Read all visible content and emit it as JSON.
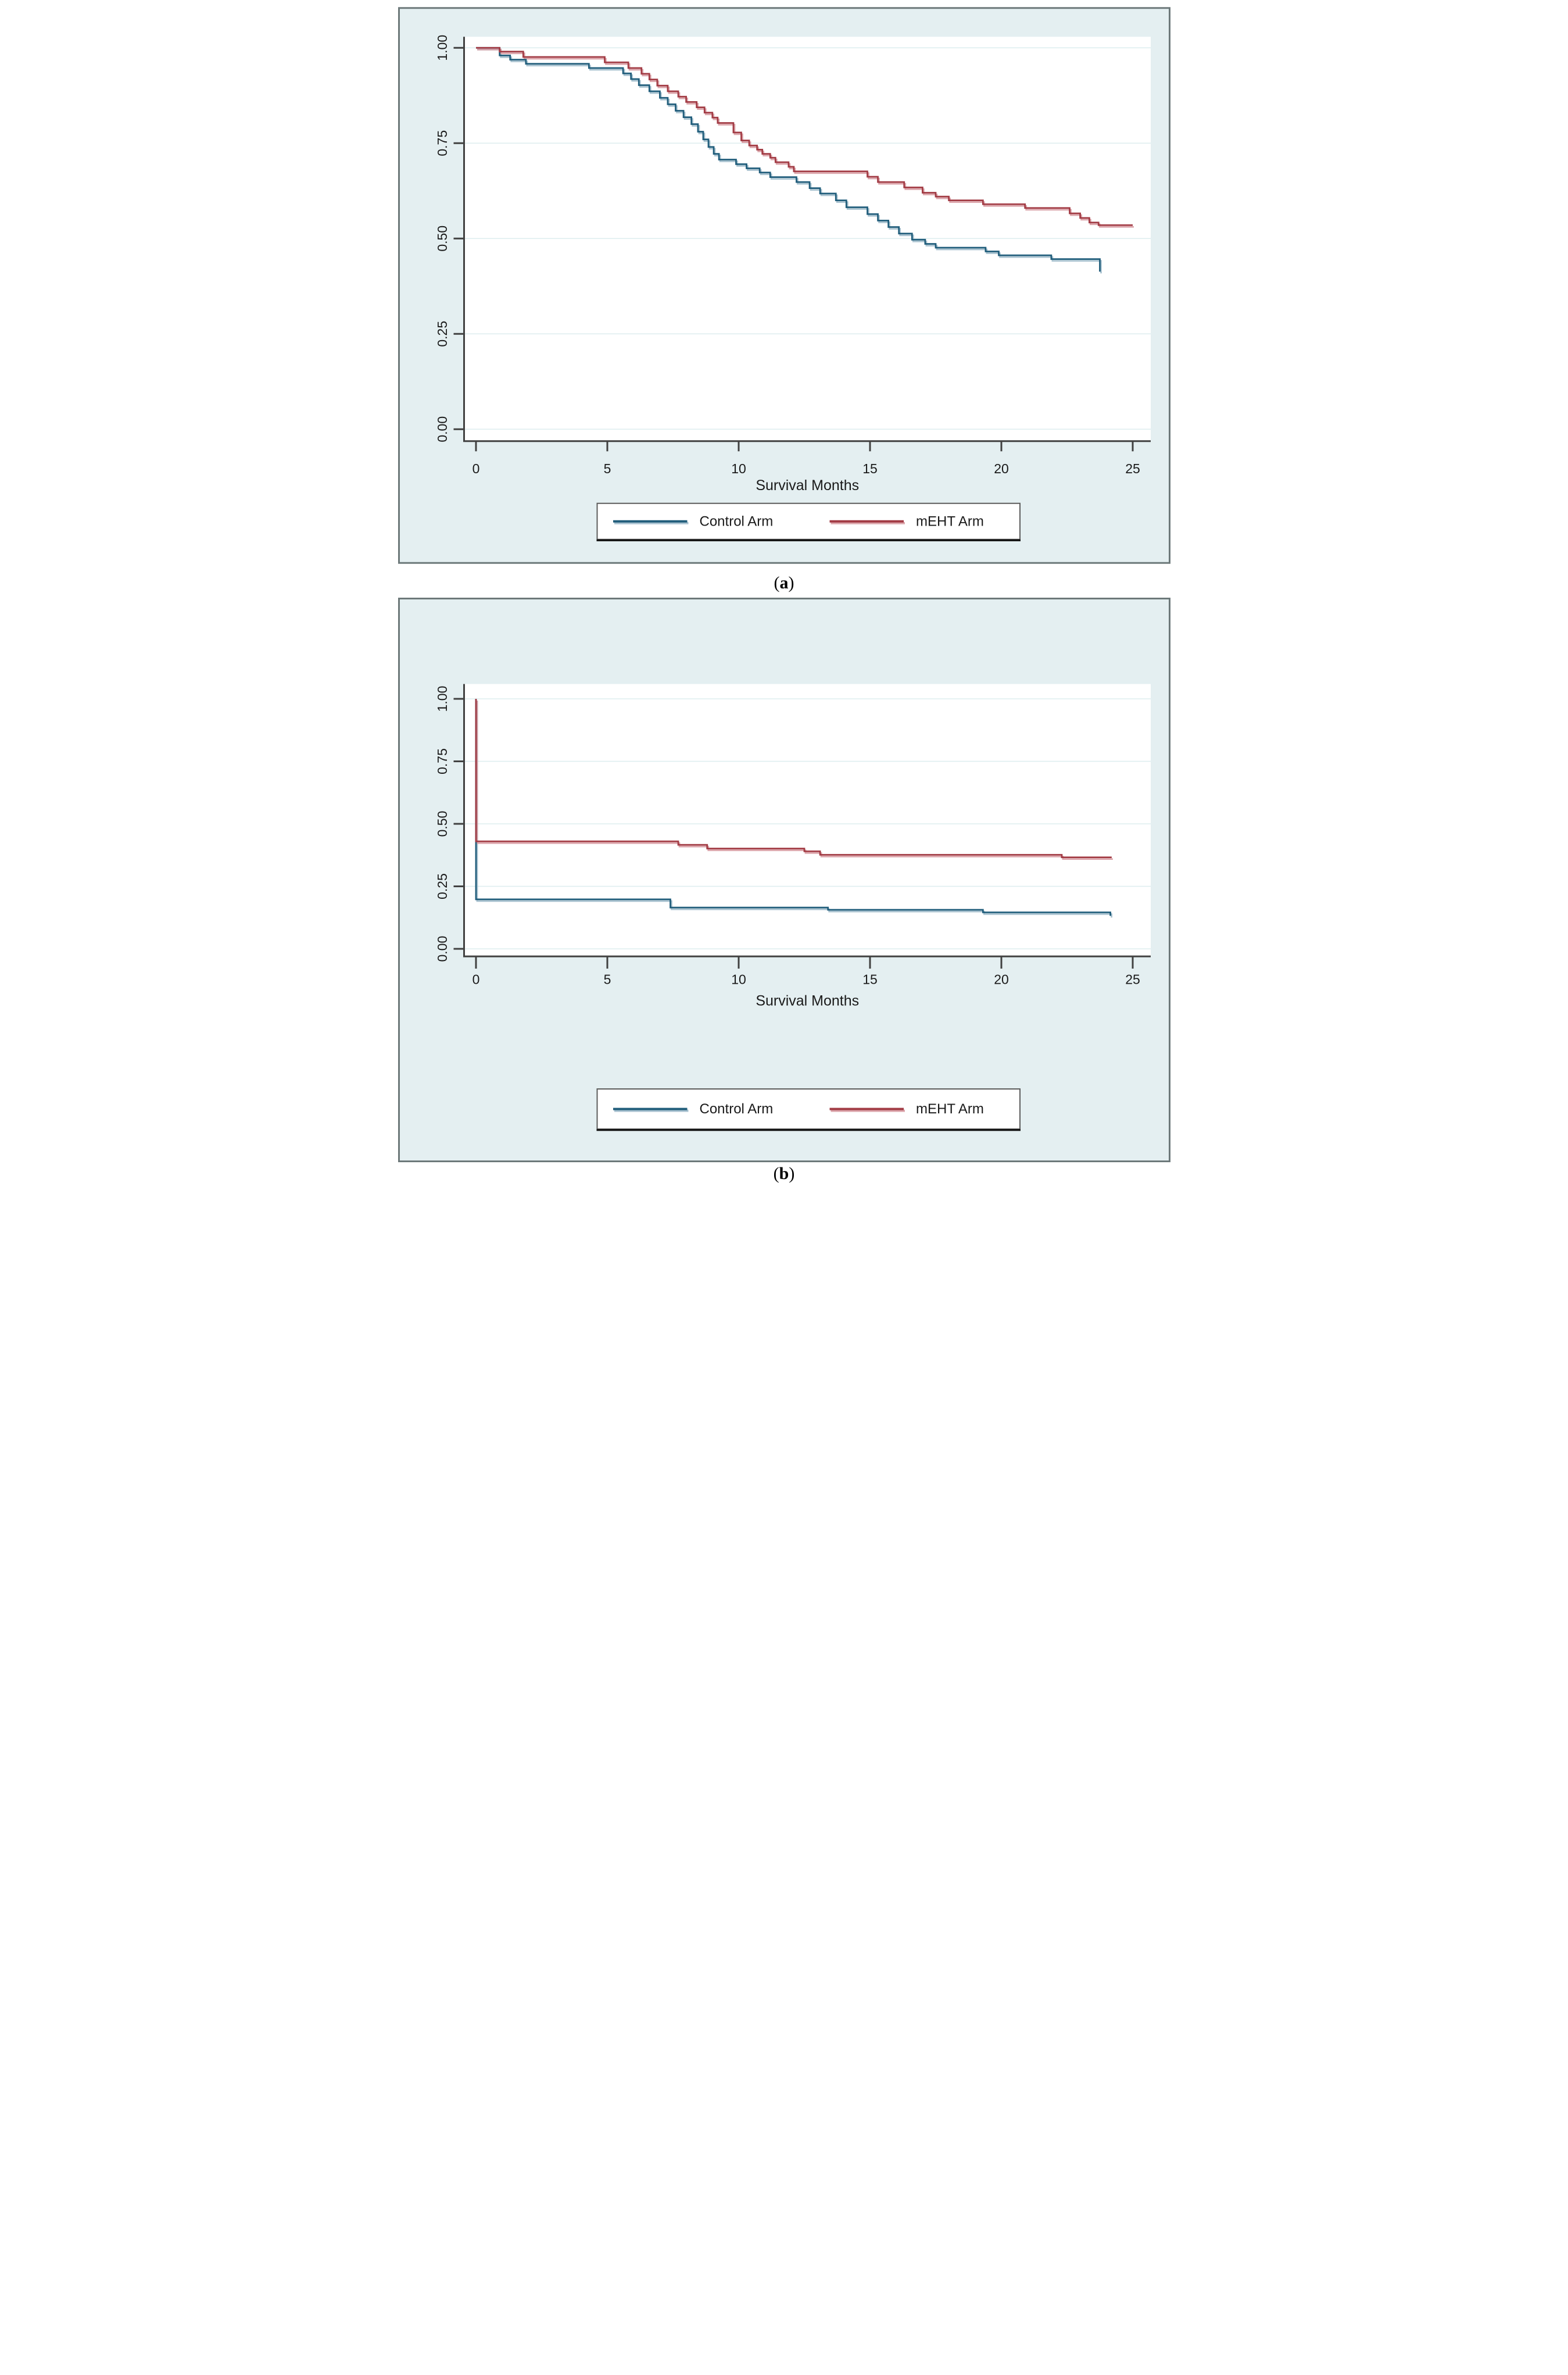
{
  "figure": {
    "caption_a": {
      "open": "(",
      "letter": "a",
      "close": ")"
    },
    "caption_b": {
      "open": "(",
      "letter": "b",
      "close": ")"
    }
  },
  "colors": {
    "page_bg": "#ffffff",
    "panel_bg": "#e4eff1",
    "frame_border": "#6d797a",
    "plot_bg": "#ffffff",
    "gridline": "#ddedef",
    "axis": "#414141",
    "tick_text": "#1a1a1a",
    "control_arm": "#205d7b",
    "control_arm_halo": "#9bb8c8",
    "meht_arm": "#a23b44",
    "meht_arm_halo": "#d6979e",
    "legend_bg": "#ffffff",
    "legend_border": "#5c5c5c",
    "legend_border_dark": "#161616"
  },
  "chart_data": [
    {
      "id": "a",
      "type": "line",
      "subtype": "kaplan-meier-step",
      "title": "",
      "xlabel": "Survival Months",
      "ylabel": "",
      "xlim": [
        0,
        26
      ],
      "ylim": [
        0,
        1.03
      ],
      "grid": "horizontal",
      "xticks": [
        0,
        5,
        10,
        15,
        20,
        25
      ],
      "xtick_labels": [
        "0",
        "5",
        "10",
        "15",
        "20",
        "25"
      ],
      "yticks": [
        0,
        0.25,
        0.5,
        0.75,
        1
      ],
      "ytick_labels": [
        "0.00",
        "0.25",
        "0.50",
        "0.75",
        "1.00"
      ],
      "legend": {
        "position": "below",
        "entries": [
          "Control Arm",
          "mEHT Arm"
        ]
      },
      "series": [
        {
          "name": "Control Arm",
          "color_key": "control_arm",
          "points": [
            [
              0,
              1.0
            ],
            [
              0.9,
              0.98
            ],
            [
              1.3,
              0.969
            ],
            [
              1.9,
              0.958
            ],
            [
              4.3,
              0.947
            ],
            [
              5.6,
              0.933
            ],
            [
              5.9,
              0.918
            ],
            [
              6.2,
              0.902
            ],
            [
              6.6,
              0.886
            ],
            [
              7.0,
              0.869
            ],
            [
              7.3,
              0.852
            ],
            [
              7.6,
              0.835
            ],
            [
              7.9,
              0.818
            ],
            [
              8.2,
              0.8
            ],
            [
              8.45,
              0.78
            ],
            [
              8.65,
              0.76
            ],
            [
              8.85,
              0.74
            ],
            [
              9.05,
              0.722
            ],
            [
              9.25,
              0.707
            ],
            [
              9.9,
              0.695
            ],
            [
              10.3,
              0.684
            ],
            [
              10.8,
              0.673
            ],
            [
              11.2,
              0.661
            ],
            [
              12.2,
              0.648
            ],
            [
              12.7,
              0.632
            ],
            [
              13.1,
              0.618
            ],
            [
              13.7,
              0.6
            ],
            [
              14.1,
              0.582
            ],
            [
              14.9,
              0.564
            ],
            [
              15.3,
              0.547
            ],
            [
              15.7,
              0.53
            ],
            [
              16.1,
              0.513
            ],
            [
              16.6,
              0.497
            ],
            [
              17.1,
              0.486
            ],
            [
              17.5,
              0.476
            ],
            [
              19.4,
              0.466
            ],
            [
              19.9,
              0.456
            ],
            [
              21.9,
              0.446
            ],
            [
              23.7,
              0.446
            ],
            [
              23.75,
              0.413
            ]
          ]
        },
        {
          "name": "mEHT Arm",
          "color_key": "meht_arm",
          "points": [
            [
              0,
              1.0
            ],
            [
              0.9,
              0.99
            ],
            [
              1.8,
              0.976
            ],
            [
              4.9,
              0.962
            ],
            [
              5.8,
              0.947
            ],
            [
              6.3,
              0.932
            ],
            [
              6.6,
              0.917
            ],
            [
              6.9,
              0.901
            ],
            [
              7.3,
              0.886
            ],
            [
              7.7,
              0.872
            ],
            [
              8.0,
              0.858
            ],
            [
              8.4,
              0.844
            ],
            [
              8.7,
              0.83
            ],
            [
              9.0,
              0.817
            ],
            [
              9.2,
              0.803
            ],
            [
              9.8,
              0.778
            ],
            [
              10.1,
              0.757
            ],
            [
              10.4,
              0.744
            ],
            [
              10.7,
              0.733
            ],
            [
              10.9,
              0.722
            ],
            [
              11.2,
              0.712
            ],
            [
              11.4,
              0.7
            ],
            [
              11.9,
              0.688
            ],
            [
              12.1,
              0.676
            ],
            [
              14.9,
              0.662
            ],
            [
              15.3,
              0.648
            ],
            [
              16.3,
              0.634
            ],
            [
              17.0,
              0.62
            ],
            [
              17.5,
              0.61
            ],
            [
              18.0,
              0.6
            ],
            [
              19.3,
              0.59
            ],
            [
              20.9,
              0.58
            ],
            [
              22.6,
              0.566
            ],
            [
              23.0,
              0.554
            ],
            [
              23.35,
              0.542
            ],
            [
              23.7,
              0.535
            ],
            [
              25.0,
              0.535
            ]
          ]
        }
      ]
    },
    {
      "id": "b",
      "type": "line",
      "subtype": "kaplan-meier-step",
      "title": "",
      "xlabel": "Survival Months",
      "ylabel": "",
      "xlim": [
        0,
        26
      ],
      "ylim": [
        0,
        1.03
      ],
      "grid": "horizontal",
      "xticks": [
        0,
        5,
        10,
        15,
        20,
        25
      ],
      "xtick_labels": [
        "0",
        "5",
        "10",
        "15",
        "20",
        "25"
      ],
      "yticks": [
        0,
        0.25,
        0.5,
        0.75,
        1
      ],
      "ytick_labels": [
        "0.00",
        "0.25",
        "0.50",
        "0.75",
        "1.00"
      ],
      "legend": {
        "position": "below",
        "entries": [
          "Control Arm",
          "mEHT Arm"
        ]
      },
      "series": [
        {
          "name": "Control Arm",
          "color_key": "control_arm",
          "points": [
            [
              0,
              1.0
            ],
            [
              0,
              0.198
            ],
            [
              7.4,
              0.165
            ],
            [
              13.4,
              0.156
            ],
            [
              19.3,
              0.146
            ],
            [
              24.1,
              0.146
            ],
            [
              24.15,
              0.132
            ]
          ]
        },
        {
          "name": "mEHT Arm",
          "color_key": "meht_arm",
          "points": [
            [
              0,
              1.0
            ],
            [
              0,
              0.43
            ],
            [
              7.7,
              0.416
            ],
            [
              8.8,
              0.401
            ],
            [
              12.5,
              0.39
            ],
            [
              13.1,
              0.376
            ],
            [
              22.3,
              0.366
            ],
            [
              24.2,
              0.366
            ]
          ]
        }
      ]
    }
  ]
}
